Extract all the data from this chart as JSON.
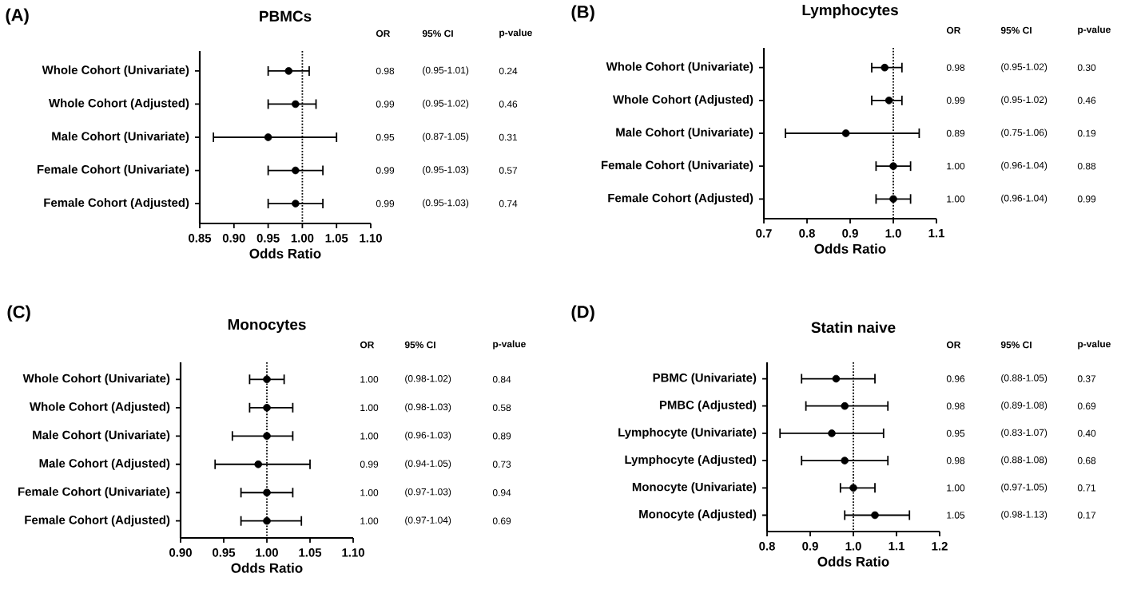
{
  "chart_data": [
    {
      "type": "scatter",
      "orientation": "horizontal",
      "title": "PBMCs",
      "xlabel": "Odds Ratio",
      "color": "#000000",
      "marker": "circle",
      "grid": false,
      "categories": [
        "Whole Cohort (Univariate)",
        "Whole Cohort (Adjusted)",
        "Male Cohort (Univariate)",
        "Female Cohort (Univariate)",
        "Female Cohort (Adjusted)"
      ],
      "values": [
        0.98,
        0.99,
        0.95,
        0.99,
        0.99
      ],
      "errors": [
        [
          0.95,
          1.01
        ],
        [
          0.95,
          1.02
        ],
        [
          0.87,
          1.05
        ],
        [
          0.95,
          1.03
        ],
        [
          0.95,
          1.03
        ]
      ],
      "value_labels": [
        "0.98",
        "0.99",
        "0.95",
        "0.99",
        "0.99"
      ],
      "xlim": [
        0.85,
        1.1
      ],
      "xticks": [
        {
          "value": 0.85,
          "label": "0.85"
        },
        {
          "value": 0.9,
          "label": "0.90"
        },
        {
          "value": 0.95,
          "label": "0.95"
        },
        {
          "value": 1.0,
          "label": "1.00"
        },
        {
          "value": 1.05,
          "label": "1.05"
        },
        {
          "value": 1.1,
          "label": "1.10"
        }
      ],
      "ref_lines": [
        {
          "axis": "x",
          "value": 1,
          "line_style": "dotted"
        }
      ],
      "annotations": [
        "(A)",
        "OR",
        "95% CI",
        "p-value",
        "(0.95-1.01)",
        "0.24",
        "(0.95-1.02)",
        "0.46",
        "(0.87-1.05)",
        "0.31",
        "(0.95-1.03)",
        "0.57",
        "(0.95-1.03)",
        "0.74"
      ]
    },
    {
      "type": "scatter",
      "orientation": "horizontal",
      "title": "Lymphocytes",
      "xlabel": "Odds Ratio",
      "color": "#000000",
      "marker": "circle",
      "grid": false,
      "categories": [
        "Whole Cohort (Univariate)",
        "Whole Cohort (Adjusted)",
        "Male Cohort (Univariate)",
        "Female Cohort (Univariate)",
        "Female Cohort (Adjusted)"
      ],
      "values": [
        0.98,
        0.99,
        0.89,
        1.0,
        1.0
      ],
      "errors": [
        [
          0.95,
          1.02
        ],
        [
          0.95,
          1.02
        ],
        [
          0.75,
          1.06
        ],
        [
          0.96,
          1.04
        ],
        [
          0.96,
          1.04
        ]
      ],
      "value_labels": [
        "0.98",
        "0.99",
        "0.89",
        "1.00",
        "1.00"
      ],
      "xlim": [
        0.7,
        1.1
      ],
      "xticks": [
        {
          "value": 0.7,
          "label": "0.7"
        },
        {
          "value": 0.8,
          "label": "0.8"
        },
        {
          "value": 0.9,
          "label": "0.9"
        },
        {
          "value": 1.0,
          "label": "1.0"
        },
        {
          "value": 1.1,
          "label": "1.1"
        }
      ],
      "ref_lines": [
        {
          "axis": "x",
          "value": 1,
          "line_style": "dotted"
        }
      ],
      "annotations": [
        "(B)",
        "OR",
        "95% CI",
        "p-value",
        "(0.95-1.02)",
        "0.30",
        "(0.95-1.02)",
        "0.46",
        "(0.75-1.06)",
        "0.19",
        "(0.96-1.04)",
        "0.88",
        "(0.96-1.04)",
        "0.99"
      ]
    },
    {
      "type": "scatter",
      "orientation": "horizontal",
      "title": "Monocytes",
      "xlabel": "Odds Ratio",
      "color": "#000000",
      "marker": "circle",
      "grid": false,
      "categories": [
        "Whole Cohort (Univariate)",
        "Whole Cohort (Adjusted)",
        "Male Cohort (Univariate)",
        "Male Cohort (Adjusted)",
        "Female Cohort (Univariate)",
        "Female Cohort (Adjusted)"
      ],
      "values": [
        1.0,
        1.0,
        1.0,
        0.99,
        1.0,
        1.0
      ],
      "errors": [
        [
          0.98,
          1.02
        ],
        [
          0.98,
          1.03
        ],
        [
          0.96,
          1.03
        ],
        [
          0.94,
          1.05
        ],
        [
          0.97,
          1.03
        ],
        [
          0.97,
          1.04
        ]
      ],
      "value_labels": [
        "1.00",
        "1.00",
        "1.00",
        "0.99",
        "1.00",
        "1.00"
      ],
      "xlim": [
        0.9,
        1.1
      ],
      "xticks": [
        {
          "value": 0.9,
          "label": "0.90"
        },
        {
          "value": 0.95,
          "label": "0.95"
        },
        {
          "value": 1.0,
          "label": "1.00"
        },
        {
          "value": 1.05,
          "label": "1.05"
        },
        {
          "value": 1.1,
          "label": "1.10"
        }
      ],
      "ref_lines": [
        {
          "axis": "x",
          "value": 1,
          "line_style": "dotted"
        }
      ],
      "annotations": [
        "(C)",
        "OR",
        "95% CI",
        "p-value",
        "(0.98-1.02)",
        "0.84",
        "(0.98-1.03)",
        "0.58",
        "(0.96-1.03)",
        "0.89",
        "(0.94-1.05)",
        "0.73",
        "(0.97-1.03)",
        "0.94",
        "(0.97-1.04)",
        "0.69"
      ]
    },
    {
      "type": "scatter",
      "orientation": "horizontal",
      "title": "Statin naive",
      "xlabel": "Odds Ratio",
      "color": "#000000",
      "marker": "circle",
      "grid": false,
      "categories": [
        "PBMC (Univariate)",
        "PMBC (Adjusted)",
        "Lymphocyte (Univariate)",
        "Lymphocyte (Adjusted)",
        "Monocyte (Univariate)",
        "Monocyte (Adjusted)"
      ],
      "values": [
        0.96,
        0.98,
        0.95,
        0.98,
        1.0,
        1.05
      ],
      "errors": [
        [
          0.88,
          1.05
        ],
        [
          0.89,
          1.08
        ],
        [
          0.83,
          1.07
        ],
        [
          0.88,
          1.08
        ],
        [
          0.97,
          1.05
        ],
        [
          0.98,
          1.13
        ]
      ],
      "value_labels": [
        "0.96",
        "0.98",
        "0.95",
        "0.98",
        "1.00",
        "1.05"
      ],
      "xlim": [
        0.8,
        1.2
      ],
      "xticks": [
        {
          "value": 0.8,
          "label": "0.8"
        },
        {
          "value": 0.9,
          "label": "0.9"
        },
        {
          "value": 1.0,
          "label": "1.0"
        },
        {
          "value": 1.1,
          "label": "1.1"
        },
        {
          "value": 1.2,
          "label": "1.2"
        }
      ],
      "ref_lines": [
        {
          "axis": "x",
          "value": 1,
          "line_style": "dotted"
        }
      ],
      "annotations": [
        "(D)",
        "OR",
        "95% CI",
        "p-value",
        "(0.88-1.05)",
        "0.37",
        "(0.89-1.08)",
        "0.69",
        "(0.83-1.07)",
        "0.40",
        "(0.88-1.08)",
        "0.68",
        "(0.97-1.05)",
        "0.71",
        "(0.98-1.13)",
        "0.17"
      ]
    }
  ]
}
